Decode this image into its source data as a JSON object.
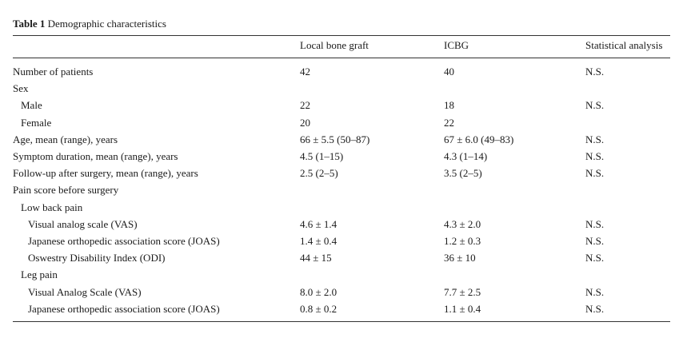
{
  "table": {
    "caption_label": "Table 1",
    "caption_title": "Demographic characteristics",
    "columns": [
      "",
      "Local bone graft",
      "ICBG",
      "Statistical analysis"
    ],
    "rows": [
      {
        "label": "Number of patients",
        "indent": 0,
        "local": "42",
        "icbg": "40",
        "stat": "N.S."
      },
      {
        "label": "Sex",
        "indent": 0,
        "local": "",
        "icbg": "",
        "stat": ""
      },
      {
        "label": "Male",
        "indent": 1,
        "local": "22",
        "icbg": "18",
        "stat": "N.S."
      },
      {
        "label": "Female",
        "indent": 1,
        "local": "20",
        "icbg": "22",
        "stat": ""
      },
      {
        "label": "Age, mean (range), years",
        "indent": 0,
        "local": "66 ± 5.5 (50–87)",
        "icbg": "67 ± 6.0 (49–83)",
        "stat": "N.S."
      },
      {
        "label": "Symptom duration, mean (range), years",
        "indent": 0,
        "local": "4.5 (1–15)",
        "icbg": "4.3 (1–14)",
        "stat": "N.S."
      },
      {
        "label": "Follow-up after surgery, mean (range), years",
        "indent": 0,
        "local": "2.5 (2–5)",
        "icbg": "3.5 (2–5)",
        "stat": "N.S."
      },
      {
        "label": "Pain score before surgery",
        "indent": 0,
        "local": "",
        "icbg": "",
        "stat": ""
      },
      {
        "label": "Low back pain",
        "indent": 1,
        "local": "",
        "icbg": "",
        "stat": ""
      },
      {
        "label": "Visual analog scale (VAS)",
        "indent": 2,
        "local": "4.6 ± 1.4",
        "icbg": "4.3 ± 2.0",
        "stat": "N.S."
      },
      {
        "label": "Japanese orthopedic association score (JOAS)",
        "indent": 2,
        "local": "1.4 ± 0.4",
        "icbg": "1.2 ± 0.3",
        "stat": "N.S."
      },
      {
        "label": "Oswestry Disability Index (ODI)",
        "indent": 2,
        "local": "44 ± 15",
        "icbg": "36 ± 10",
        "stat": "N.S."
      },
      {
        "label": "Leg pain",
        "indent": 1,
        "local": "",
        "icbg": "",
        "stat": ""
      },
      {
        "label": "Visual Analog Scale (VAS)",
        "indent": 2,
        "local": "8.0 ± 2.0",
        "icbg": "7.7 ± 2.5",
        "stat": "N.S."
      },
      {
        "label": "Japanese orthopedic association score (JOAS)",
        "indent": 2,
        "local": "0.8 ± 0.2",
        "icbg": "1.1 ± 0.4",
        "stat": "N.S."
      }
    ]
  }
}
